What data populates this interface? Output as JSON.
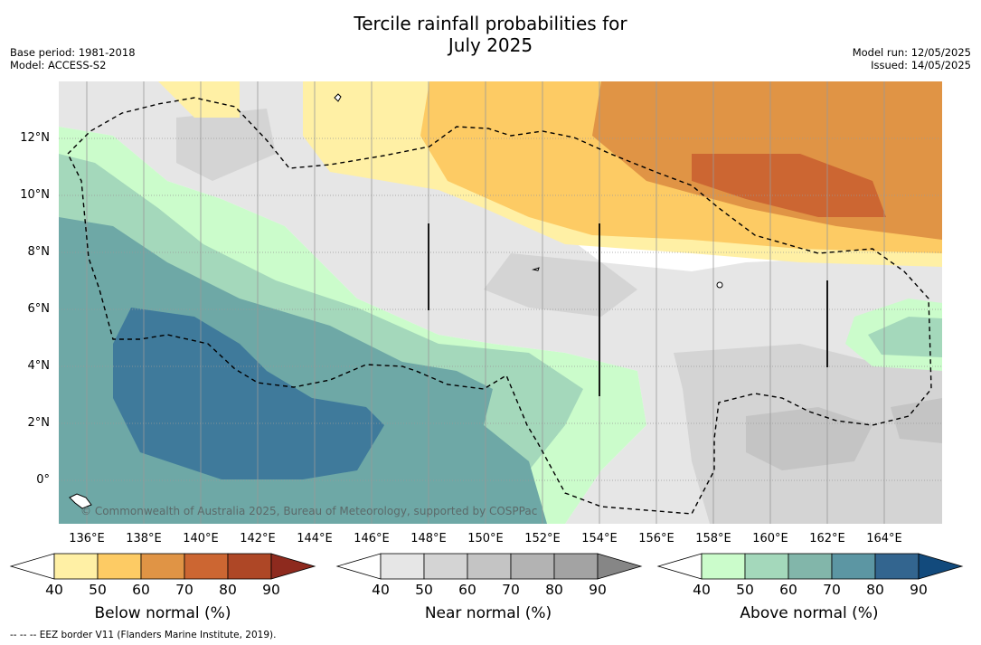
{
  "title_line1": "Tercile rainfall probabilities for",
  "title_line2": "July 2025",
  "base_period": "Base period: 1981-2018",
  "model": "Model: ACCESS-S2",
  "model_run": "Model run: 12/05/2025",
  "issued": "Issued: 14/05/2025",
  "lat_labels": [
    "12°N",
    "10°N",
    "8°N",
    "6°N",
    "4°N",
    "2°N",
    "0°"
  ],
  "lon_labels": [
    "136°E",
    "138°E",
    "140°E",
    "142°E",
    "144°E",
    "146°E",
    "148°E",
    "150°E",
    "152°E",
    "154°E",
    "156°E",
    "158°E",
    "160°E",
    "162°E",
    "164°E"
  ],
  "copyright": "© Commonwealth of Australia 2025, Bureau of Meteorology, supported by COSPPac",
  "colorbars": [
    {
      "title": "Below normal (%)",
      "ticks": [
        "40",
        "50",
        "60",
        "70",
        "80",
        "90"
      ],
      "colors": [
        "#ffffff",
        "#fff0a5",
        "#fdcb64",
        "#e09445",
        "#cc6632",
        "#ae4726",
        "#8e2a1e"
      ]
    },
    {
      "title": "Near normal (%)",
      "ticks": [
        "40",
        "50",
        "60",
        "70",
        "80",
        "90"
      ],
      "colors": [
        "#ffffff",
        "#e6e6e6",
        "#d4d4d4",
        "#c4c4c4",
        "#b3b3b3",
        "#a3a3a3",
        "#868686"
      ]
    },
    {
      "title": "Above normal (%)",
      "ticks": [
        "40",
        "50",
        "60",
        "70",
        "80",
        "90"
      ],
      "colors": [
        "#ffffff",
        "#cbfccb",
        "#a4d8bb",
        "#82b6aa",
        "#5c96a3",
        "#33658f",
        "#124a7c"
      ]
    }
  ],
  "footnote": "--  --  -- EEZ border V11 (Flanders Marine Institute, 2019).",
  "colors": {
    "below_50": "#fff0a5",
    "below_60": "#fdcb64",
    "below_70": "#e09445",
    "below_80": "#cc6632",
    "near_40": "#e6e6e6",
    "near_50": "#d4d4d4",
    "near_60": "#c4c4c4",
    "above_40": "#cbfccb",
    "above_50": "#a4d8bb",
    "above_60": "#6ea8a6",
    "above_70": "#3f7a9b"
  }
}
